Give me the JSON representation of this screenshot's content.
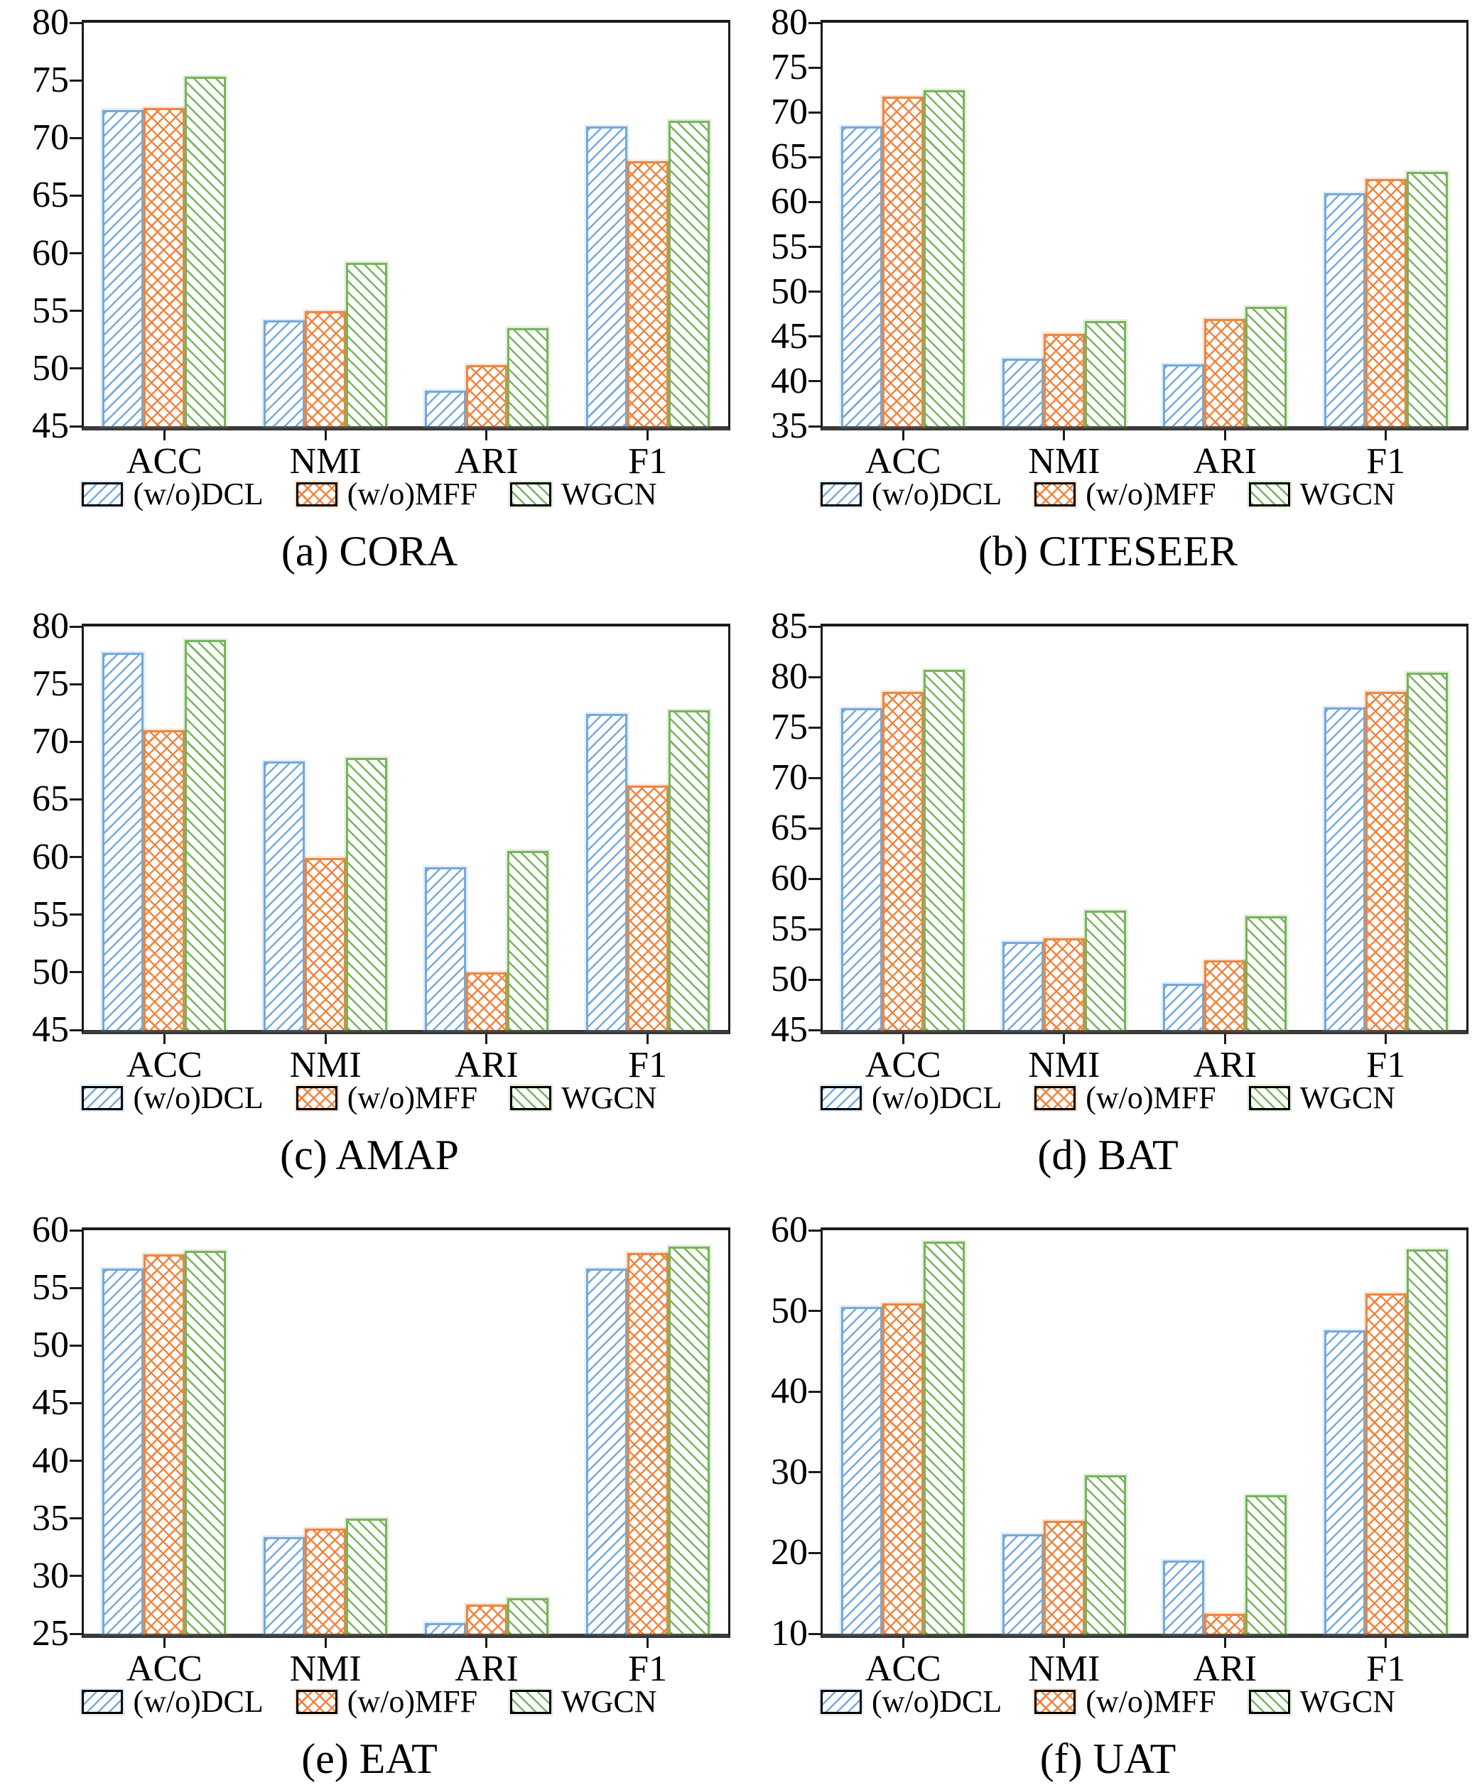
{
  "figure": {
    "background": "#ffffff",
    "axis_color": "#1b1b1b"
  },
  "colors": {
    "dcl": "#74a9dc",
    "mff": "#ed8640",
    "wgcn": "#77b45c"
  },
  "legend": {
    "items": [
      {
        "key": "dcl",
        "label": "(w/o)DCL",
        "hatch": "diagonal-forward"
      },
      {
        "key": "mff",
        "label": "(w/o)MFF",
        "hatch": "crosshatch"
      },
      {
        "key": "wgcn",
        "label": "WGCN",
        "hatch": "diagonal-backward"
      }
    ],
    "position": "bottom"
  },
  "chart_data": [
    {
      "type": "bar",
      "title": "(a) CORA",
      "categories": [
        "ACC",
        "NMI",
        "ARI",
        "F1"
      ],
      "series": [
        {
          "name": "(w/o)DCL",
          "values": [
            72.4,
            54.2,
            48.1,
            71.0
          ]
        },
        {
          "name": "(w/o)MFF",
          "values": [
            72.6,
            55.0,
            50.3,
            68.0
          ]
        },
        {
          "name": "WGCN",
          "values": [
            75.3,
            59.2,
            53.5,
            71.5
          ]
        }
      ],
      "ylim": [
        45,
        80
      ],
      "ytick_step": 5,
      "grid": false,
      "legend_position": "bottom"
    },
    {
      "type": "bar",
      "title": "(b) CITESEER",
      "categories": [
        "ACC",
        "NMI",
        "ARI",
        "F1"
      ],
      "series": [
        {
          "name": "(w/o)DCL",
          "values": [
            68.4,
            42.5,
            41.9,
            61.0
          ]
        },
        {
          "name": "(w/o)MFF",
          "values": [
            71.8,
            45.3,
            47.0,
            62.6
          ]
        },
        {
          "name": "WGCN",
          "values": [
            72.5,
            46.7,
            48.3,
            63.4
          ]
        }
      ],
      "ylim": [
        35,
        80
      ],
      "ytick_step": 5,
      "grid": false,
      "legend_position": "bottom"
    },
    {
      "type": "bar",
      "title": "(c) AMAP",
      "categories": [
        "ACC",
        "NMI",
        "ARI",
        "F1"
      ],
      "series": [
        {
          "name": "(w/o)DCL",
          "values": [
            77.7,
            68.3,
            59.1,
            72.4
          ]
        },
        {
          "name": "(w/o)MFF",
          "values": [
            71.0,
            59.9,
            50.0,
            66.2
          ]
        },
        {
          "name": "WGCN",
          "values": [
            78.8,
            68.6,
            60.5,
            72.7
          ]
        }
      ],
      "ylim": [
        45,
        80
      ],
      "ytick_step": 5,
      "grid": false,
      "legend_position": "bottom"
    },
    {
      "type": "bar",
      "title": "(d) BAT",
      "categories": [
        "ACC",
        "NMI",
        "ARI",
        "F1"
      ],
      "series": [
        {
          "name": "(w/o)DCL",
          "values": [
            76.9,
            53.7,
            49.6,
            77.0
          ]
        },
        {
          "name": "(w/o)MFF",
          "values": [
            78.5,
            54.1,
            51.9,
            78.5
          ]
        },
        {
          "name": "WGCN",
          "values": [
            80.7,
            56.8,
            56.3,
            80.4
          ]
        }
      ],
      "ylim": [
        45,
        85
      ],
      "ytick_step": 5,
      "grid": false,
      "legend_position": "bottom"
    },
    {
      "type": "bar",
      "title": "(e) EAT",
      "categories": [
        "ACC",
        "NMI",
        "ARI",
        "F1"
      ],
      "series": [
        {
          "name": "(w/o)DCL",
          "values": [
            56.7,
            33.4,
            25.9,
            56.7
          ]
        },
        {
          "name": "(w/o)MFF",
          "values": [
            57.9,
            34.1,
            27.5,
            58.0
          ]
        },
        {
          "name": "WGCN",
          "values": [
            58.2,
            35.0,
            28.1,
            58.6
          ]
        }
      ],
      "ylim": [
        25,
        60
      ],
      "ytick_step": 5,
      "grid": false,
      "legend_position": "bottom"
    },
    {
      "type": "bar",
      "title": "(f) UAT",
      "categories": [
        "ACC",
        "NMI",
        "ARI",
        "F1"
      ],
      "series": [
        {
          "name": "(w/o)DCL",
          "values": [
            50.5,
            22.3,
            19.1,
            47.6
          ]
        },
        {
          "name": "(w/o)MFF",
          "values": [
            50.9,
            24.0,
            12.5,
            52.2
          ]
        },
        {
          "name": "WGCN",
          "values": [
            58.6,
            29.6,
            27.2,
            57.6
          ]
        }
      ],
      "ylim": [
        10,
        60
      ],
      "ytick_step": 10,
      "grid": false,
      "legend_position": "bottom"
    }
  ]
}
